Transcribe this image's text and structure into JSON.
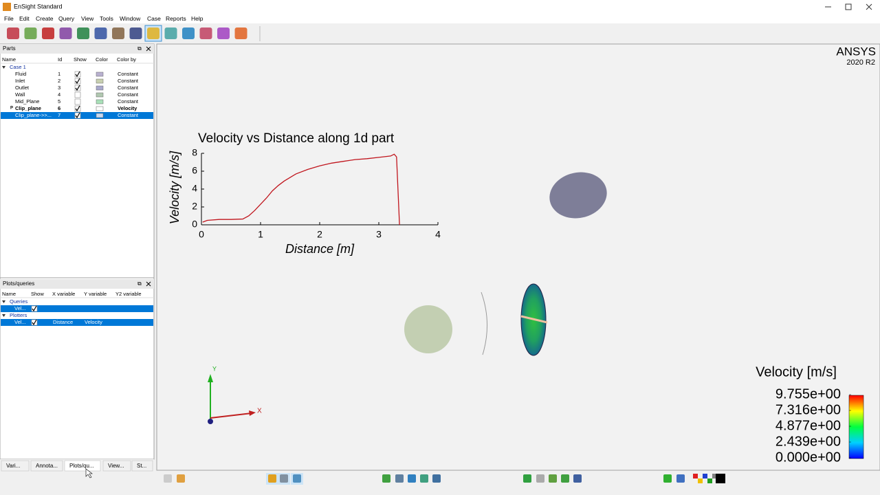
{
  "window": {
    "title": "EnSight Standard"
  },
  "menu": [
    "File",
    "Edit",
    "Create",
    "Query",
    "View",
    "Tools",
    "Window",
    "Case",
    "Reports",
    "Help"
  ],
  "parts_panel": {
    "title": "Parts",
    "columns": [
      "Name",
      "Id",
      "Show",
      "Color",
      "Color by"
    ],
    "case": "Case 1",
    "rows": [
      {
        "name": "Fluid",
        "id": 1,
        "show": true,
        "color": "#b8b0d0",
        "color_by": "Constant"
      },
      {
        "name": "Inlet",
        "id": 2,
        "show": true,
        "color": "#c8d0b0",
        "color_by": "Constant"
      },
      {
        "name": "Outlet",
        "id": 3,
        "show": true,
        "color": "#a8a8cc",
        "color_by": "Constant"
      },
      {
        "name": "Wall",
        "id": 4,
        "show": false,
        "color": "#b0c8b0",
        "color_by": "Constant"
      },
      {
        "name": "Mid_Plane",
        "id": 5,
        "show": false,
        "color": "#a8e0b8",
        "color_by": "Constant"
      },
      {
        "marker": "P",
        "name": "Clip_plane",
        "id": 6,
        "show": true,
        "color": "#ffffff",
        "color_by": "Velocity",
        "bold": true
      },
      {
        "name": "Clip_plane->>...",
        "id": 7,
        "show": true,
        "color": "#c8d8f0",
        "color_by": "Constant",
        "selected": true
      }
    ]
  },
  "plots_panel": {
    "title": "Plots/queries",
    "columns": [
      "Name",
      "Show",
      "X variable",
      "Y variable",
      "Y2 variable"
    ],
    "groups": [
      {
        "name": "Queries",
        "rows": [
          {
            "name": "Vel...",
            "show": true
          }
        ]
      },
      {
        "name": "Plotters",
        "rows": [
          {
            "name": "Vel...",
            "show": true,
            "x_variable": "Distance",
            "y_variable": "Velocity"
          }
        ]
      }
    ]
  },
  "tabs": [
    "Vari...",
    "Annota...",
    "Plots/qu...",
    "View...",
    "St..."
  ],
  "active_tab": 2,
  "viewport": {
    "brand": "ANSYS",
    "version": "2020 R2",
    "triad": {
      "x": "X",
      "y": "Y"
    }
  },
  "chart_data": {
    "type": "line",
    "title": "Velocity vs Distance along 1d part",
    "x_label": "Distance [m]",
    "y_label": "Velocity [m/s]",
    "x": [
      0.02,
      0.1,
      0.3,
      0.5,
      0.7,
      0.8,
      0.9,
      1.0,
      1.1,
      1.2,
      1.3,
      1.4,
      1.6,
      1.8,
      2.0,
      2.2,
      2.4,
      2.6,
      2.8,
      3.0,
      3.2,
      3.26,
      3.3,
      3.35
    ],
    "series": [
      {
        "color": "#c0141c",
        "values": [
          0.3,
          0.5,
          0.6,
          0.6,
          0.65,
          1.0,
          1.6,
          2.3,
          3.0,
          3.8,
          4.4,
          4.9,
          5.7,
          6.2,
          6.6,
          6.9,
          7.1,
          7.3,
          7.4,
          7.55,
          7.7,
          7.9,
          7.6,
          0
        ]
      }
    ],
    "xlim": [
      0,
      4
    ],
    "xticks": [
      0,
      1,
      2,
      3,
      4
    ],
    "ylim": [
      0,
      8
    ],
    "yticks": [
      0,
      2,
      4,
      6,
      8
    ]
  },
  "colorbar": {
    "title": "Velocity [m/s]",
    "ticks": [
      {
        "value": 9.755,
        "label": "9.755e+00"
      },
      {
        "value": 7.316,
        "label": "7.316e+00"
      },
      {
        "value": 4.877,
        "label": "4.877e+00"
      },
      {
        "value": 2.439,
        "label": "2.439e+00"
      },
      {
        "value": 0,
        "label": "0.000e+00"
      }
    ]
  }
}
